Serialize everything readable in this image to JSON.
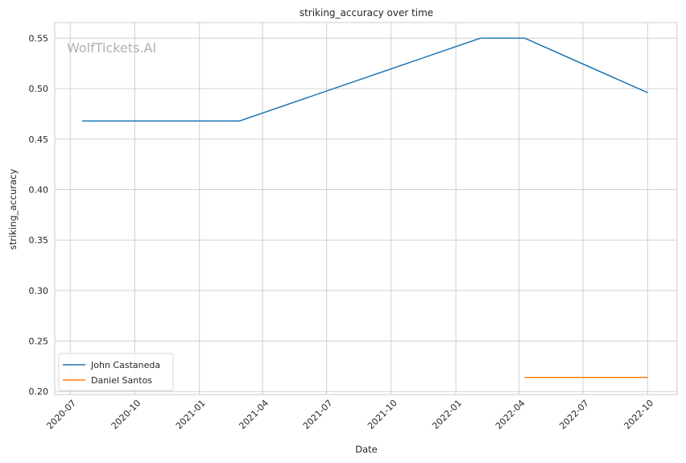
{
  "chart_data": {
    "type": "line",
    "title": "striking_accuracy over time",
    "xlabel": "Date",
    "ylabel": "striking_accuracy",
    "watermark": "WolfTickets.AI",
    "grid": true,
    "legend_position": "bottom-left",
    "xlim": [
      "2020-06-09",
      "2022-11-12"
    ],
    "ylim": [
      0.197,
      0.5655
    ],
    "x_ticks": [
      "2020-07",
      "2020-10",
      "2021-01",
      "2021-04",
      "2021-07",
      "2021-10",
      "2022-01",
      "2022-04",
      "2022-07",
      "2022-10"
    ],
    "y_ticks": [
      "0.20",
      "0.25",
      "0.30",
      "0.35",
      "0.40",
      "0.45",
      "0.50",
      "0.55"
    ],
    "series": [
      {
        "name": "John Castaneda",
        "color": "#1f77b4",
        "x": [
          "2020-07-18",
          "2021-02-27",
          "2022-02-05",
          "2022-04-09",
          "2022-10-01"
        ],
        "y": [
          0.468,
          0.468,
          0.55,
          0.55,
          0.496
        ]
      },
      {
        "name": "Daniel Santos",
        "color": "#ff7f0e",
        "x": [
          "2022-04-09",
          "2022-10-01"
        ],
        "y": [
          0.214,
          0.214
        ]
      }
    ]
  }
}
